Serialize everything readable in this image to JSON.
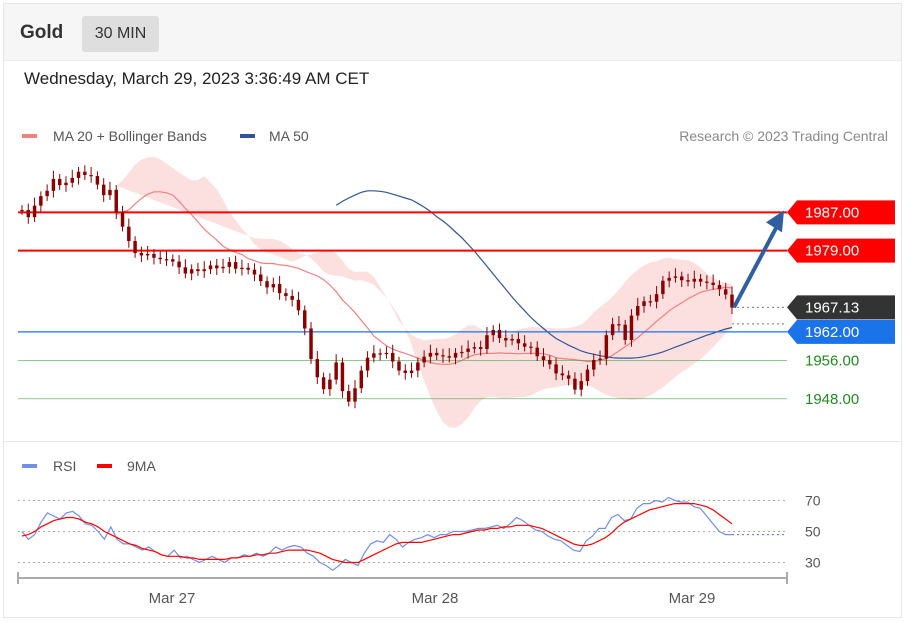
{
  "header": {
    "asset": "Gold",
    "timeframe": "30 MIN"
  },
  "timestamp": "Wednesday, March 29, 2023 3:36:49 AM CET",
  "credit": "Research © 2023 Trading Central",
  "colors": {
    "ma20": "#f08080",
    "ma50": "#2f5597",
    "bands": "#fbd4d4",
    "resistance": "#ff0000",
    "pivot": "#1a73e8",
    "support": "#44aa44",
    "last": "#333333",
    "arrow": "#2f5fa0",
    "candle": "#8b0000",
    "rsi": "#6f8fe8",
    "rsi_ma": "#ff0000"
  },
  "chart_data": [
    {
      "type": "candlestick",
      "legend": [
        {
          "name": "MA 20 + Bollinger Bands",
          "color": "#f08080"
        },
        {
          "name": "MA 50",
          "color": "#2f5597"
        }
      ],
      "x_ticks": [
        "Mar 27",
        "Mar 28",
        "Mar 29"
      ],
      "ylim": [
        1940,
        1999
      ],
      "levels": [
        {
          "label": "1987.00",
          "value": 1987.0,
          "kind": "resistance",
          "color": "#ff0000"
        },
        {
          "label": "1979.00",
          "value": 1979.0,
          "kind": "resistance",
          "color": "#ff0000"
        },
        {
          "label": "1967.13",
          "value": 1967.13,
          "kind": "last",
          "color": "#333333"
        },
        {
          "label": "1962.00",
          "value": 1962.0,
          "kind": "pivot",
          "color": "#1a73e8"
        },
        {
          "label": "1956.00",
          "value": 1956.0,
          "kind": "support",
          "color": "#44aa44"
        },
        {
          "label": "1948.00",
          "value": 1948.0,
          "kind": "support",
          "color": "#44aa44"
        }
      ],
      "close": [
        1987.5,
        1986,
        1988.4,
        1990.4,
        1991.5,
        1994,
        1992.7,
        1993.2,
        1994.2,
        1995.5,
        1994.8,
        1994.6,
        1992.8,
        1990.6,
        1991.7,
        1987,
        1984,
        1981,
        1978.5,
        1978,
        1978.3,
        1977.5,
        1977.2,
        1977.2,
        1976.7,
        1975.5,
        1974.2,
        1975.1,
        1974.7,
        1975.1,
        1975.9,
        1975.3,
        1975.6,
        1976.6,
        1975.2,
        1975.4,
        1975,
        1974,
        1972.6,
        1971.3,
        1972,
        1970.1,
        1969.5,
        1968.7,
        1966.5,
        1962.7,
        1956.3,
        1952.5,
        1950,
        1952,
        1955.6,
        1949.6,
        1947.4,
        1950.2,
        1953.9,
        1956.6,
        1957.5,
        1957.4,
        1957.6,
        1955.8,
        1953.9,
        1953.4,
        1953.9,
        1955.6,
        1956.8,
        1957.6,
        1957.1,
        1956.9,
        1956.6,
        1957.6,
        1957.8,
        1958.5,
        1958.8,
        1958.4,
        1961.3,
        1962.4,
        1960.7,
        1960.2,
        1960.5,
        1959.6,
        1958.9,
        1958.7,
        1956.9,
        1956.1,
        1955.2,
        1953.3,
        1952.9,
        1952.2,
        1949.9,
        1951.7,
        1954.1,
        1956.1,
        1956.4,
        1961.3,
        1963.6,
        1963.5,
        1960.3,
        1965.4,
        1967.4,
        1968.4,
        1968.3,
        1969.9,
        1972.7,
        1973.3,
        1973.6,
        1972.8,
        1972.5,
        1973.1,
        1972.5,
        1972.3,
        1971.8,
        1970.9,
        1969.8,
        1967.1
      ],
      "ma20": [
        1986.5,
        1987.1,
        1987.5,
        1988.8,
        1989.9,
        1990.8,
        1991.3,
        1991.3,
        1991.1,
        1990.6,
        1989.3,
        1987.8,
        1986.5,
        1985,
        1983.5,
        1982.3,
        1981.2,
        1979.9,
        1979.2,
        1978.6,
        1978.2,
        1977.3,
        1976.9,
        1976.4,
        1976.3,
        1976.3,
        1976,
        1975.9,
        1975.6,
        1975.3,
        1974.7,
        1974.2,
        1973.7,
        1972.9,
        1971.8,
        1970.4,
        1968.7,
        1967.4,
        1966,
        1964.4,
        1962.8,
        1961.1,
        1960.1,
        1959.1,
        1958.4,
        1957.9,
        1957.5,
        1957,
        1956.5,
        1956,
        1955.6,
        1955.3,
        1955.2,
        1955.2,
        1955.5,
        1956,
        1956.7,
        1957.2,
        1957.4,
        1957.5,
        1957.5,
        1957.6,
        1957.5,
        1957.5,
        1957.4,
        1957.5,
        1957.5,
        1957.5,
        1957.4,
        1957.1,
        1956.6,
        1956.4,
        1956.3,
        1956.2,
        1956,
        1955.8,
        1955.8,
        1956,
        1956.4,
        1957.1,
        1958,
        1958.9,
        1959.8,
        1960.8,
        1961.9,
        1963,
        1964.2,
        1965.3,
        1966.4,
        1967.3,
        1968.1,
        1968.9,
        1969.6,
        1970.3,
        1970.6,
        1970.9,
        1971.1,
        1971.3,
        1971.2
      ],
      "ma50": [
        1988.5,
        1989.3,
        1990,
        1990.6,
        1991.2,
        1991.5,
        1991.5,
        1991.4,
        1991.2,
        1990.8,
        1990.4,
        1990,
        1989.6,
        1988.9,
        1988.1,
        1987.2,
        1986.1,
        1985.2,
        1984.1,
        1982.9,
        1981.7,
        1980.3,
        1978.9,
        1977.3,
        1975.7,
        1974.1,
        1972.5,
        1970.9,
        1969.3,
        1967.8,
        1966.4,
        1965,
        1963.8,
        1962.7,
        1961.6,
        1960.6,
        1959.9,
        1959.2,
        1958.6,
        1958,
        1957.6,
        1957.3,
        1957,
        1956.8,
        1956.6,
        1956.5,
        1956.5,
        1956.5,
        1956.6,
        1956.8,
        1957.1,
        1957.4,
        1957.8,
        1958.3,
        1958.8,
        1959.3,
        1959.8,
        1960.3,
        1960.8,
        1961.3,
        1961.7,
        1962.2,
        1962.6,
        1962.9
      ],
      "bands_upper": [
        1992.6,
        1993.6,
        1995.3,
        1997,
        1998,
        1998.5,
        1998.6,
        1998.1,
        1997.2,
        1996.3,
        1995.3,
        1994.5,
        1993.7,
        1993.7,
        1994.6,
        1993.2,
        1991.8,
        1989.6,
        1987,
        1985.4,
        1983.6,
        1982.1,
        1980.3,
        1979.3,
        1978.6,
        1978.2,
        1977.7,
        1977.2,
        1976.7,
        1977.2,
        1977.9,
        1978.2,
        1978.6,
        1978.9,
        1979,
        1978.4,
        1976.9,
        1975.2,
        1974.5,
        1974.6,
        1974.6,
        1973.5,
        1971.4,
        1969.2,
        1966.8,
        1964.2,
        1962.7,
        1961.4,
        1960.6,
        1960.2,
        1960.4,
        1960.5,
        1960.5,
        1960.8,
        1961.5,
        1962.5,
        1963.4,
        1963.4,
        1962.6,
        1961.9,
        1961.5,
        1961.3,
        1961.5,
        1961.9,
        1962.5,
        1962.8,
        1963,
        1963,
        1962.9,
        1962.8,
        1962.7,
        1962.7,
        1962.8,
        1963.1,
        1963.5,
        1964.6,
        1966.1,
        1967.2,
        1968.2,
        1969.4,
        1970.8,
        1972.5,
        1973.9,
        1975,
        1975.9,
        1976.5,
        1976.8,
        1977.3,
        1977.5,
        1977.2,
        1977.1,
        1977,
        1976.4,
        1975.4,
        1974.2,
        1973.2,
        1972.6,
        1972.2,
        1972
      ],
      "bands_lower": [
        1981.6,
        1981.5,
        1981.4,
        1981.4,
        1981.1,
        1980.3,
        1979.3,
        1978.5,
        1978.2,
        1977.4,
        1976.1,
        1974.6,
        1973.9,
        1973.7,
        1973.6,
        1973.1,
        1972.7,
        1972.8,
        1972.4,
        1971.8,
        1970.5,
        1969.1,
        1967.3,
        1965.3,
        1962.6,
        1959.2,
        1955.3,
        1951.8,
        1948.4,
        1945.4,
        1943.1,
        1942,
        1941.9,
        1942.7,
        1944.1,
        1946,
        1947.6,
        1948.3,
        1948.4,
        1948.2,
        1948.1,
        1948.2,
        1948.3,
        1948.4,
        1948.7,
        1949.4,
        1950,
        1950.3,
        1950.4,
        1950.7,
        1950.9,
        1950.9,
        1950.9,
        1950.8,
        1950.3,
        1949.5,
        1948.8,
        1948.4,
        1948.1,
        1947.9,
        1947.8,
        1947.9,
        1948.1,
        1948.7,
        1949.5,
        1950.4,
        1951.5,
        1952.6,
        1953.6,
        1954.4,
        1955.4,
        1956.3,
        1957.5,
        1958.8,
        1960.2,
        1961.6,
        1962.8
      ],
      "target_arrow": {
        "from": 1967.13,
        "to": 1987.0
      }
    },
    {
      "type": "line",
      "legend": [
        {
          "name": "RSI",
          "color": "#6f8fe8"
        },
        {
          "name": "9MA",
          "color": "#ff0000"
        }
      ],
      "ylim": [
        20,
        80
      ],
      "y_ticks": [
        "70",
        "50",
        "30"
      ],
      "series": [
        {
          "name": "RSI",
          "values": [
            50,
            45,
            48,
            56,
            62,
            60,
            58,
            62,
            63,
            60,
            55,
            54,
            50,
            45,
            53,
            45,
            42,
            42,
            40,
            38,
            40,
            37,
            35,
            34,
            38,
            33,
            34,
            32,
            30,
            32,
            34,
            32,
            30,
            33,
            33,
            35,
            34,
            36,
            34,
            36,
            40,
            38,
            40,
            41,
            40,
            36,
            34,
            30,
            28,
            25,
            28,
            32,
            30,
            28,
            36,
            42,
            44,
            43,
            48,
            45,
            40,
            43,
            45,
            46,
            48,
            46,
            48,
            48,
            50,
            50,
            50,
            51,
            52,
            52,
            53,
            54,
            52,
            55,
            59,
            57,
            54,
            51,
            50,
            47,
            45,
            44,
            41,
            38,
            37,
            44,
            47,
            52,
            52,
            59,
            61,
            57,
            58,
            65,
            68,
            68,
            70,
            69,
            72,
            70,
            69,
            69,
            66,
            65,
            60,
            55,
            50,
            48,
            48
          ]
        },
        {
          "name": "9MA",
          "values": [
            47,
            48,
            50,
            53,
            55,
            57,
            58,
            59,
            59,
            58,
            56,
            55,
            53,
            50,
            48,
            46,
            44,
            42,
            41,
            39,
            38,
            37,
            35,
            34,
            34,
            34,
            33,
            33,
            32,
            32,
            32,
            32,
            32,
            33,
            33,
            34,
            34,
            35,
            35,
            36,
            36,
            37,
            38,
            38,
            38,
            38,
            37,
            36,
            34,
            32,
            31,
            30,
            30,
            30,
            32,
            34,
            36,
            38,
            40,
            42,
            43,
            43,
            43,
            43,
            44,
            45,
            46,
            47,
            48,
            48,
            49,
            50,
            51,
            51,
            52,
            52,
            53,
            53,
            54,
            54,
            54,
            53,
            52,
            50,
            48,
            46,
            44,
            42,
            41,
            41,
            42,
            44,
            46,
            49,
            53,
            56,
            58,
            60,
            62,
            64,
            65,
            66,
            67,
            68,
            68,
            68,
            68,
            67,
            66,
            64,
            61,
            58,
            55
          ]
        }
      ]
    }
  ]
}
